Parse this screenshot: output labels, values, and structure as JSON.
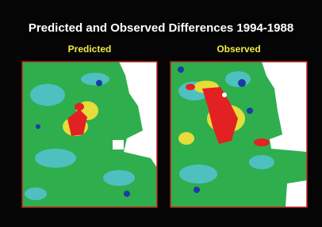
{
  "header": {
    "title": "Predicted and Observed Differences 1994-1988"
  },
  "panels": [
    {
      "label": "Predicted"
    },
    {
      "label": "Observed"
    }
  ]
}
